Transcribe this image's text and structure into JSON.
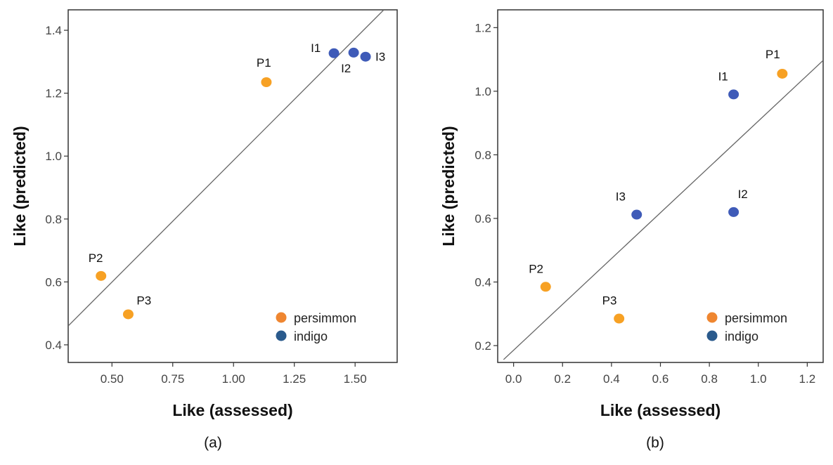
{
  "colors": {
    "persimmon_point": "#F7A124",
    "indigo_point": "#3F5BB8",
    "persimmon_legend": "#EF8630",
    "indigo_legend": "#2A5A8C",
    "line": "#666666",
    "frame": "#333333"
  },
  "chart_data": [
    {
      "type": "scatter",
      "caption": "(a)",
      "xlabel": "Like (assessed)",
      "ylabel": "Like (predicted)",
      "xlim": [
        0.32,
        1.673
      ],
      "ylim": [
        0.344,
        1.465
      ],
      "xticks": [
        0.5,
        0.75,
        1.0,
        1.25,
        1.5
      ],
      "xtick_labels": [
        "0.50",
        "0.75",
        "1.00",
        "1.25",
        "1.50"
      ],
      "yticks": [
        0.4,
        0.6,
        0.8,
        1.0,
        1.2,
        1.4
      ],
      "ytick_labels": [
        "0.4",
        "0.6",
        "0.8",
        "1.0",
        "1.2",
        "1.4"
      ],
      "grid": false,
      "legend_placement": "bottom-right",
      "legend": [
        "persimmon",
        "indigo"
      ],
      "fit_line": {
        "x": [
          0.32,
          1.618
        ],
        "y": [
          0.46,
          1.465
        ]
      },
      "series": [
        {
          "name": "persimmon",
          "points": [
            {
              "label": "P1",
              "x": 1.135,
              "y": 1.235
            },
            {
              "label": "P2",
              "x": 0.455,
              "y": 0.619
            },
            {
              "label": "P3",
              "x": 0.567,
              "y": 0.497
            }
          ]
        },
        {
          "name": "indigo",
          "points": [
            {
              "label": "I1",
              "x": 1.413,
              "y": 1.327
            },
            {
              "label": "I2",
              "x": 1.494,
              "y": 1.329
            },
            {
              "label": "I3",
              "x": 1.543,
              "y": 1.316
            }
          ]
        }
      ]
    },
    {
      "type": "scatter",
      "caption": "(b)",
      "xlabel": "Like (assessed)",
      "ylabel": "Like (predicted)",
      "xlim": [
        -0.065,
        1.265
      ],
      "ylim": [
        0.147,
        1.256
      ],
      "xticks": [
        0.0,
        0.2,
        0.4,
        0.6,
        0.8,
        1.0,
        1.2
      ],
      "xtick_labels": [
        "0.0",
        "0.2",
        "0.4",
        "0.6",
        "0.8",
        "1.0",
        "1.2"
      ],
      "yticks": [
        0.2,
        0.4,
        0.6,
        0.8,
        1.0,
        1.2
      ],
      "ytick_labels": [
        "0.2",
        "0.4",
        "0.6",
        "0.8",
        "1.0",
        "1.2"
      ],
      "grid": false,
      "legend_placement": "bottom-right",
      "legend": [
        "persimmon",
        "indigo"
      ],
      "fit_line": {
        "x": [
          -0.041,
          1.265
        ],
        "y": [
          0.156,
          1.097
        ]
      },
      "series": [
        {
          "name": "persimmon",
          "points": [
            {
              "label": "P1",
              "x": 1.098,
              "y": 1.055
            },
            {
              "label": "P2",
              "x": 0.131,
              "y": 0.385
            },
            {
              "label": "P3",
              "x": 0.431,
              "y": 0.285
            }
          ]
        },
        {
          "name": "indigo",
          "points": [
            {
              "label": "I1",
              "x": 0.899,
              "y": 0.99
            },
            {
              "label": "I2",
              "x": 0.899,
              "y": 0.62
            },
            {
              "label": "I3",
              "x": 0.503,
              "y": 0.612
            }
          ]
        }
      ]
    }
  ]
}
